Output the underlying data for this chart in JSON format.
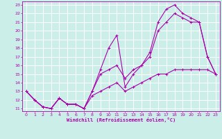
{
  "xlabel": "Windchill (Refroidissement éolien,°C)",
  "xlim": [
    -0.5,
    23.5
  ],
  "ylim": [
    10.7,
    23.4
  ],
  "xticks": [
    0,
    1,
    2,
    3,
    4,
    5,
    6,
    7,
    8,
    9,
    10,
    11,
    12,
    13,
    14,
    15,
    16,
    17,
    18,
    19,
    20,
    21,
    22,
    23
  ],
  "yticks": [
    11,
    12,
    13,
    14,
    15,
    16,
    17,
    18,
    19,
    20,
    21,
    22,
    23
  ],
  "bg_color": "#cceee8",
  "line_color": "#aa00aa",
  "grid_color": "#ffffff",
  "line1_x": [
    0,
    1,
    2,
    3,
    4,
    5,
    6,
    7,
    8,
    9,
    10,
    11,
    12,
    13,
    14,
    15,
    16,
    17,
    18,
    19,
    20,
    21,
    22,
    23
  ],
  "line1_y": [
    13,
    12,
    11.2,
    11,
    12.2,
    11.5,
    11.5,
    11,
    13,
    15,
    15.5,
    16,
    14.5,
    15.5,
    16,
    17,
    20,
    21,
    22,
    21.5,
    21,
    21,
    17,
    15
  ],
  "line2_x": [
    0,
    1,
    2,
    3,
    4,
    5,
    6,
    7,
    8,
    9,
    10,
    11,
    12,
    13,
    14,
    15,
    16,
    17,
    18,
    19,
    20,
    21,
    22,
    23
  ],
  "line2_y": [
    13,
    12,
    11.2,
    11,
    12.2,
    11.5,
    11.5,
    11,
    13,
    15.5,
    18,
    19.5,
    13.5,
    15,
    16,
    17.5,
    21,
    22.5,
    23,
    22,
    21.5,
    21,
    17,
    15
  ],
  "line3_x": [
    0,
    1,
    2,
    3,
    4,
    5,
    6,
    7,
    8,
    9,
    10,
    11,
    12,
    13,
    14,
    15,
    16,
    17,
    18,
    19,
    20,
    21,
    22,
    23
  ],
  "line3_y": [
    13,
    12,
    11.2,
    11,
    12.2,
    11.5,
    11.5,
    11,
    12.5,
    13,
    13.5,
    14,
    13,
    13.5,
    14,
    14.5,
    15,
    15,
    15.5,
    15.5,
    15.5,
    15.5,
    15.5,
    15
  ]
}
